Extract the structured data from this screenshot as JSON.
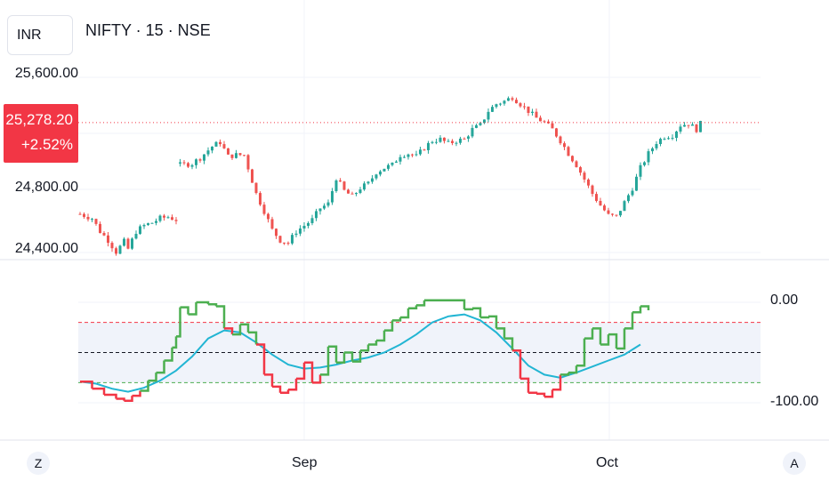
{
  "header": {
    "currency": "INR",
    "symbol_title": "NIFTY · 15 · NSE"
  },
  "price_axis": {
    "labels": [
      "25,600.00",
      "24,800.00",
      "24,400.00"
    ]
  },
  "last_price": {
    "value": "25,278.20",
    "change": "+2.52%",
    "color": "#f23645"
  },
  "indicator_axis": {
    "labels": [
      "0.00",
      "-100.00"
    ]
  },
  "time_axis": {
    "labels": [
      "Sep",
      "Oct"
    ]
  },
  "nav": {
    "left_button": "Z",
    "right_button": "A"
  },
  "colors": {
    "up_candle": "#26a69a",
    "down_candle": "#ef5350",
    "oscillator_up": "#4caf50",
    "oscillator_down": "#f23645",
    "signal_line": "#22b5d3",
    "band_fill": "#f0f3fa",
    "upper_level": "#f23645",
    "middle_level": "#131722",
    "lower_level": "#4caf50"
  },
  "chart_data": [
    {
      "type": "candlestick",
      "title": "NIFTY · 15 · NSE",
      "y_scale": "log-like",
      "ylim": [
        24340,
        25730
      ],
      "x_range": [
        "Aug",
        "Oct"
      ],
      "close_path": [
        [
          0,
          24640
        ],
        [
          3,
          24610
        ],
        [
          5,
          24520
        ],
        [
          7,
          24460
        ],
        [
          9,
          24380
        ],
        [
          11,
          24450
        ],
        [
          12,
          24400
        ],
        [
          14,
          24520
        ],
        [
          16,
          24560
        ],
        [
          18,
          24580
        ],
        [
          20,
          24610
        ],
        [
          22,
          24620
        ],
        [
          24,
          24600
        ],
        [
          25,
          24980
        ],
        [
          28,
          24990
        ],
        [
          30,
          25030
        ],
        [
          33,
          25110
        ],
        [
          35,
          25140
        ],
        [
          37,
          25040
        ],
        [
          39,
          25050
        ],
        [
          41,
          25050
        ],
        [
          42,
          24960
        ],
        [
          44,
          24780
        ],
        [
          46,
          24660
        ],
        [
          48,
          24530
        ],
        [
          50,
          24460
        ],
        [
          52,
          24440
        ],
        [
          54,
          24520
        ],
        [
          56,
          24560
        ],
        [
          58,
          24600
        ],
        [
          60,
          24680
        ],
        [
          62,
          24710
        ],
        [
          64,
          24890
        ],
        [
          66,
          24800
        ],
        [
          68,
          24760
        ],
        [
          70,
          24820
        ],
        [
          72,
          24850
        ],
        [
          74,
          24930
        ],
        [
          76,
          24960
        ],
        [
          78,
          24980
        ],
        [
          80,
          25050
        ],
        [
          82,
          25060
        ],
        [
          84,
          25040
        ],
        [
          86,
          25100
        ],
        [
          88,
          25150
        ],
        [
          90,
          25160
        ],
        [
          92,
          25130
        ],
        [
          94,
          25150
        ],
        [
          96,
          25160
        ],
        [
          98,
          25230
        ],
        [
          100,
          25260
        ],
        [
          102,
          25360
        ],
        [
          104,
          25410
        ],
        [
          106,
          25430
        ],
        [
          108,
          25460
        ],
        [
          110,
          25410
        ],
        [
          112,
          25360
        ],
        [
          114,
          25310
        ],
        [
          116,
          25280
        ],
        [
          118,
          25230
        ],
        [
          120,
          25150
        ],
        [
          122,
          25060
        ],
        [
          124,
          24980
        ],
        [
          126,
          24880
        ],
        [
          128,
          24780
        ],
        [
          130,
          24700
        ],
        [
          132,
          24630
        ],
        [
          134,
          24620
        ],
        [
          136,
          24720
        ],
        [
          138,
          24820
        ],
        [
          140,
          24960
        ],
        [
          142,
          25060
        ],
        [
          144,
          25140
        ],
        [
          146,
          25180
        ],
        [
          148,
          25190
        ],
        [
          150,
          25260
        ],
        [
          152,
          25270
        ],
        [
          154,
          25230
        ],
        [
          155,
          25270
        ]
      ]
    },
    {
      "type": "line",
      "title": "",
      "ylim": [
        -106,
        6
      ],
      "levels": {
        "upper": -20,
        "middle": -50,
        "lower": -80
      },
      "series": [
        {
          "role": "oscillator",
          "points": [
            [
              0,
              -79
            ],
            [
              3,
              -86
            ],
            [
              6,
              -92
            ],
            [
              9,
              -96
            ],
            [
              11,
              -98
            ],
            [
              13,
              -93
            ],
            [
              15,
              -88
            ],
            [
              17,
              -78
            ],
            [
              19,
              -70
            ],
            [
              21,
              -58
            ],
            [
              23,
              -45
            ],
            [
              24,
              -34
            ],
            [
              25,
              -5
            ],
            [
              27,
              -12
            ],
            [
              29,
              0
            ],
            [
              32,
              -2
            ],
            [
              34,
              -4
            ],
            [
              36,
              -26
            ],
            [
              38,
              -32
            ],
            [
              40,
              -22
            ],
            [
              42,
              -30
            ],
            [
              44,
              -42
            ],
            [
              46,
              -72
            ],
            [
              48,
              -84
            ],
            [
              50,
              -90
            ],
            [
              52,
              -87
            ],
            [
              54,
              -76
            ],
            [
              56,
              -60
            ],
            [
              58,
              -80
            ],
            [
              60,
              -72
            ],
            [
              62,
              -44
            ],
            [
              64,
              -60
            ],
            [
              66,
              -50
            ],
            [
              68,
              -59
            ],
            [
              70,
              -48
            ],
            [
              72,
              -42
            ],
            [
              74,
              -38
            ],
            [
              76,
              -28
            ],
            [
              78,
              -18
            ],
            [
              80,
              -15
            ],
            [
              82,
              -6
            ],
            [
              84,
              -3
            ],
            [
              86,
              2
            ],
            [
              90,
              2
            ],
            [
              94,
              2
            ],
            [
              96,
              -7
            ],
            [
              98,
              -6
            ],
            [
              100,
              -15
            ],
            [
              102,
              -14
            ],
            [
              104,
              -26
            ],
            [
              106,
              -36
            ],
            [
              108,
              -48
            ],
            [
              110,
              -76
            ],
            [
              112,
              -90
            ],
            [
              114,
              -91
            ],
            [
              116,
              -94
            ],
            [
              118,
              -87
            ],
            [
              120,
              -72
            ],
            [
              122,
              -70
            ],
            [
              124,
              -63
            ],
            [
              126,
              -36
            ],
            [
              128,
              -26
            ],
            [
              130,
              -42
            ],
            [
              132,
              -32
            ],
            [
              134,
              -46
            ],
            [
              136,
              -26
            ],
            [
              138,
              -10
            ],
            [
              140,
              -4
            ],
            [
              142,
              -8
            ]
          ],
          "up_color": "#4caf50",
          "down_color": "#f23645"
        },
        {
          "role": "signal",
          "color": "#22b5d3",
          "points": [
            [
              0,
              -79
            ],
            [
              4,
              -81
            ],
            [
              8,
              -86
            ],
            [
              12,
              -89
            ],
            [
              16,
              -85
            ],
            [
              20,
              -78
            ],
            [
              24,
              -68
            ],
            [
              28,
              -54
            ],
            [
              32,
              -36
            ],
            [
              36,
              -28
            ],
            [
              40,
              -30
            ],
            [
              44,
              -40
            ],
            [
              48,
              -52
            ],
            [
              52,
              -62
            ],
            [
              56,
              -66
            ],
            [
              60,
              -65
            ],
            [
              64,
              -62
            ],
            [
              68,
              -58
            ],
            [
              72,
              -55
            ],
            [
              76,
              -50
            ],
            [
              80,
              -42
            ],
            [
              84,
              -32
            ],
            [
              88,
              -20
            ],
            [
              92,
              -14
            ],
            [
              96,
              -12
            ],
            [
              100,
              -18
            ],
            [
              104,
              -30
            ],
            [
              108,
              -46
            ],
            [
              112,
              -63
            ],
            [
              116,
              -72
            ],
            [
              120,
              -75
            ],
            [
              124,
              -70
            ],
            [
              128,
              -64
            ],
            [
              132,
              -58
            ],
            [
              136,
              -52
            ],
            [
              140,
              -42
            ]
          ]
        }
      ]
    }
  ]
}
